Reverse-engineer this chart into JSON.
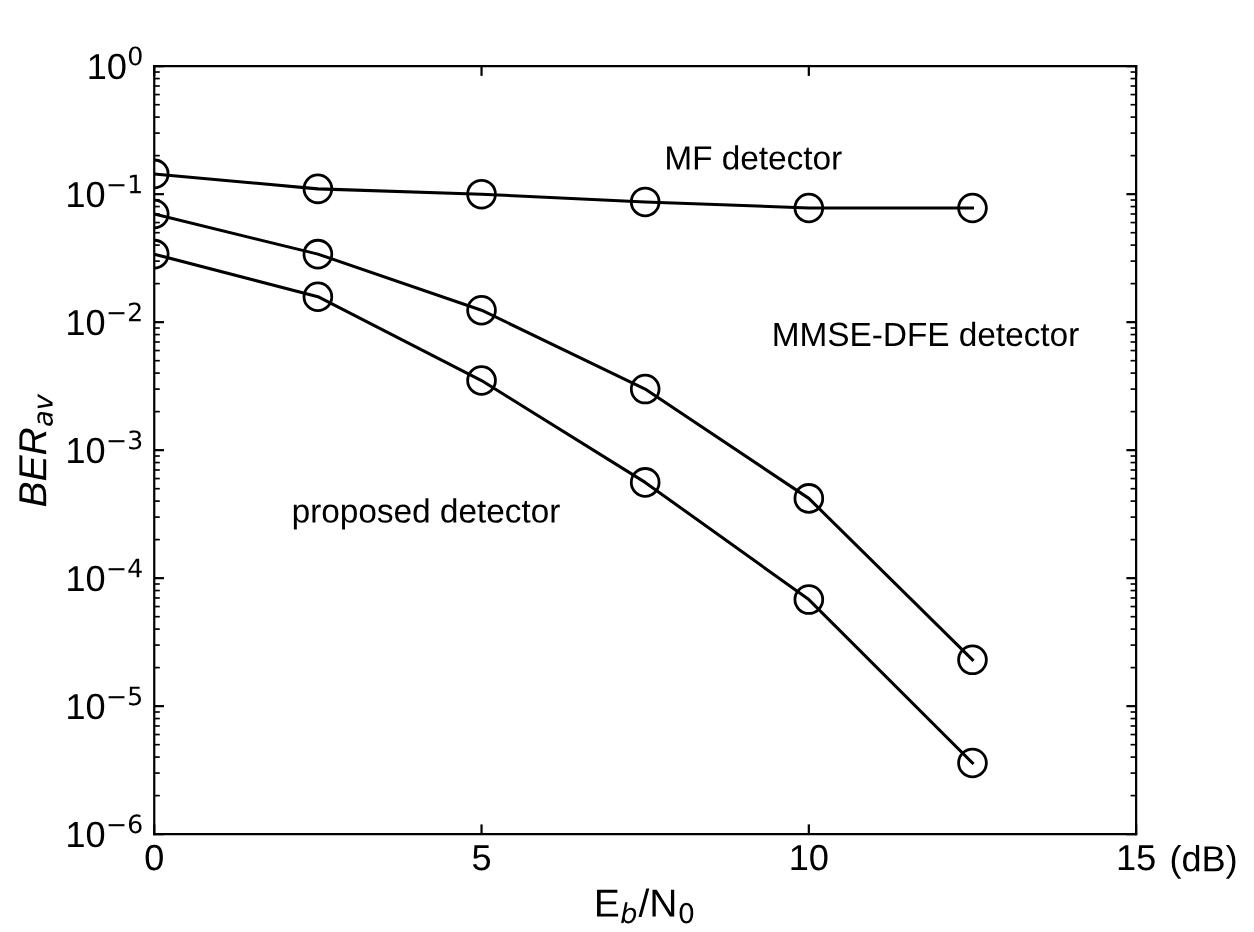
{
  "chart_data": {
    "type": "line",
    "xlabel": "E$_{b}$/N$_{0}$",
    "ylabel": "BER$_{av}$",
    "annotations": [
      "(dB)"
    ],
    "log": "y",
    "xlim": [
      0,
      15
    ],
    "xticks": [
      0,
      5,
      10,
      15
    ],
    "ylim": [
      1e-06,
      1
    ],
    "yticks": [
      {
        "value": 1e-06,
        "label": "10$^{−6}$"
      },
      {
        "value": 1e-05,
        "label": "10$^{−5}$"
      },
      {
        "value": 0.0001,
        "label": "10$^{−4}$"
      },
      {
        "value": 0.001,
        "label": "10$^{−3}$"
      },
      {
        "value": 0.01,
        "label": "10$^{−2}$"
      },
      {
        "value": 0.1,
        "label": "10$^{−1}$"
      },
      {
        "value": 1,
        "label": "10$^{0}$"
      }
    ],
    "grid": false,
    "marker": "circle",
    "line_style": "solid",
    "x": [
      0,
      2.5,
      5,
      7.5,
      10,
      12.5
    ],
    "series": [
      {
        "name": "MF detector",
        "color": "#000000",
        "values": [
          0.144,
          0.11,
          0.1,
          0.087,
          0.078,
          0.078
        ]
      },
      {
        "name": "MMSE-DFE detector",
        "color": "#000000",
        "values": [
          0.07,
          0.034,
          0.0124,
          0.003,
          0.00042,
          2.3e-05
        ]
      },
      {
        "name": "proposed detector",
        "color": "#000000",
        "values": [
          0.034,
          0.0158,
          0.0035,
          0.00056,
          6.8e-05,
          3.6e-06
        ]
      }
    ]
  }
}
